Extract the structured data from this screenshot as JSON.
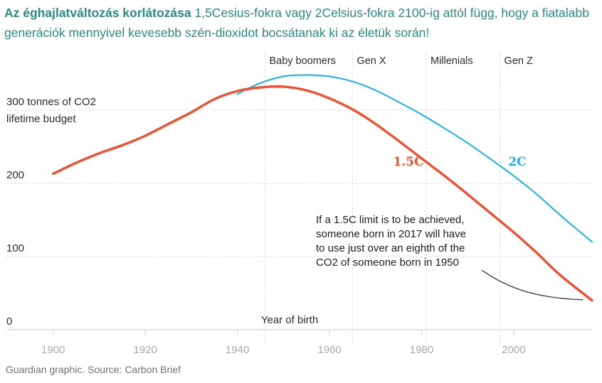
{
  "title": {
    "bold": "Az éghajlatváltozás korlátozása",
    "text": " 1,5Cesius-fokra vagy 2Celsius-fokra 2100-ig attól függ, hogy a fiatalabb generációk mennyivel kevesebb szén-dioxidot bocsátanak ki az életük során!"
  },
  "source": "Guardian graphic. Source: Carbon Brief",
  "chart_data": {
    "type": "line",
    "xlabel": "Year of birth",
    "ylabel_lines": [
      "300 tonnes of CO2",
      "lifetime budget"
    ],
    "xlim": [
      1890,
      2017
    ],
    "ylim": [
      0,
      330
    ],
    "x_ticks": [
      1900,
      1920,
      1940,
      1960,
      1980,
      2000
    ],
    "y_ticks": [
      {
        "value": 0,
        "label": "0"
      },
      {
        "value": 100,
        "label": "100"
      },
      {
        "value": 200,
        "label": "200"
      },
      {
        "value": 300,
        "label": ""
      }
    ],
    "grid": "horizontal dotted",
    "generations": [
      {
        "label": "Baby boomers",
        "start": 1946,
        "end": 1964
      },
      {
        "label": "Gen X",
        "start": 1965,
        "end": 1980
      },
      {
        "label": "Millenials",
        "start": 1981,
        "end": 1996
      },
      {
        "label": "Gen Z",
        "start": 1997,
        "end": 2012
      }
    ],
    "series": [
      {
        "name": "2C",
        "color": "#1ab0e6",
        "x": [
          1940,
          1945,
          1950,
          1955,
          1960,
          1965,
          1970,
          1975,
          1980,
          1985,
          1990,
          1995,
          2000,
          2005,
          2010,
          2017
        ],
        "y": [
          322,
          337,
          346,
          348,
          346,
          339,
          327,
          311,
          294,
          275,
          255,
          233,
          210,
          185,
          157,
          120
        ]
      },
      {
        "name": "1.5C",
        "color": "#f0502f",
        "x": [
          1900,
          1905,
          1910,
          1915,
          1920,
          1925,
          1930,
          1935,
          1940,
          1945,
          1950,
          1955,
          1960,
          1965,
          1970,
          1975,
          1980,
          1985,
          1990,
          1995,
          2000,
          2005,
          2010,
          2017
        ],
        "y": [
          213,
          228,
          241,
          252,
          265,
          281,
          297,
          315,
          326,
          331,
          332,
          327,
          316,
          301,
          281,
          258,
          234,
          210,
          185,
          159,
          133,
          105,
          75,
          40
        ]
      }
    ],
    "annotation": {
      "lines": [
        "If a 1.5C limit is to be achieved,",
        "someone born in 2017 will have",
        "to use just over an eighth of the",
        "CO2 of someone born in 1950"
      ],
      "pointer_x": 2015,
      "pointer_y": 40
    }
  }
}
